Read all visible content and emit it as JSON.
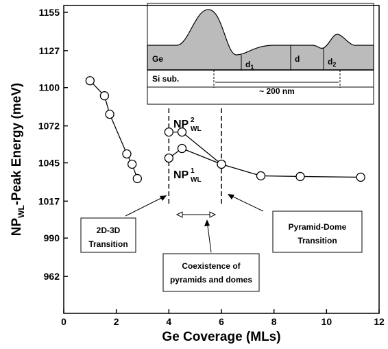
{
  "chart_data": {
    "type": "line",
    "x_label": "Ge Coverage (MLs)",
    "y_label": {
      "main": "NP",
      "sub": "WL",
      "rest": "-Peak Energy (meV)"
    },
    "xlim": [
      0,
      12
    ],
    "xticks": [
      0,
      2,
      4,
      6,
      8,
      10,
      12
    ],
    "ylim": [
      935,
      1160
    ],
    "yticks": [
      962,
      990,
      1017,
      1045,
      1072,
      1100,
      1127,
      1155
    ],
    "series": [
      {
        "x": [
          1.0,
          1.55,
          1.75,
          2.4,
          2.6,
          2.8
        ],
        "values": [
          1105,
          1094,
          1080.5,
          1051.5,
          1044,
          1033.5
        ]
      },
      {
        "x": [
          4,
          4.5,
          6,
          7.5,
          9,
          11.3
        ],
        "values": [
          1067.5,
          1067.5,
          1044,
          1035.5,
          1035,
          1034.5
        ]
      },
      {
        "x": [
          4,
          4.5,
          6
        ],
        "values": [
          1048.5,
          1055.5,
          1044
        ]
      }
    ],
    "series_labels": [
      {
        "main": "NP",
        "sup": "2",
        "sub": "WL"
      },
      {
        "main": "NP",
        "sup": "1",
        "sub": "WL"
      }
    ],
    "dashed_lines_x": [
      4,
      6
    ],
    "annotations": [
      {
        "lines": [
          "2D-3D",
          "Transition"
        ]
      },
      {
        "lines": [
          "Coexistence of",
          "pyramids and domes"
        ]
      },
      {
        "lines": [
          "Pyramid-Dome",
          "Transition"
        ]
      }
    ],
    "inset": {
      "ge": "Ge",
      "si": "Si sub.",
      "d1": {
        "main": "d",
        "sub": "1"
      },
      "d": "d",
      "d2": {
        "main": "d",
        "sub": "2"
      },
      "scale": "~ 200 nm"
    }
  }
}
